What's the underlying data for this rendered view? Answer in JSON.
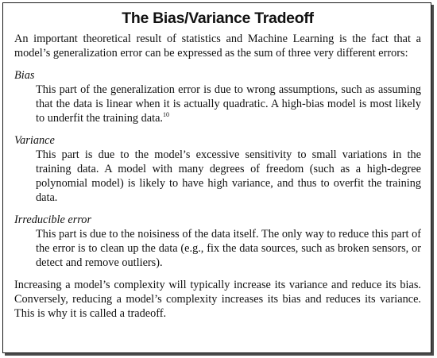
{
  "title": "The Bias/Variance Tradeoff",
  "intro": "An important theoretical result of statistics and Machine Learning is the fact that a model’s generalization error can be expressed as the sum of three very different errors:",
  "definitions": [
    {
      "term": "Bias",
      "text": "This part of the generalization error is due to wrong assumptions, such as assuming that the data is linear when it is actually quadratic. A high-bias model is most likely to underfit the training data.",
      "footnote": "10"
    },
    {
      "term": "Variance",
      "text": "This part is due to the model’s excessive sensitivity to small variations in the training data. A model with many degrees of freedom (such as a high-degree polynomial model) is likely to have high variance, and thus to overfit the training data."
    },
    {
      "term": "Irreducible error",
      "text": "This part is due to the noisiness of the data itself. The only way to reduce this part of the error is to clean up the data (e.g., fix the data sources, such as broken sensors, or detect and remove outliers)."
    }
  ],
  "conclusion": "Increasing a model’s complexity will typically increase its variance and reduce its bias. Conversely, reducing a model’s complexity increases its bias and reduces its variance. This is why it is called a tradeoff."
}
